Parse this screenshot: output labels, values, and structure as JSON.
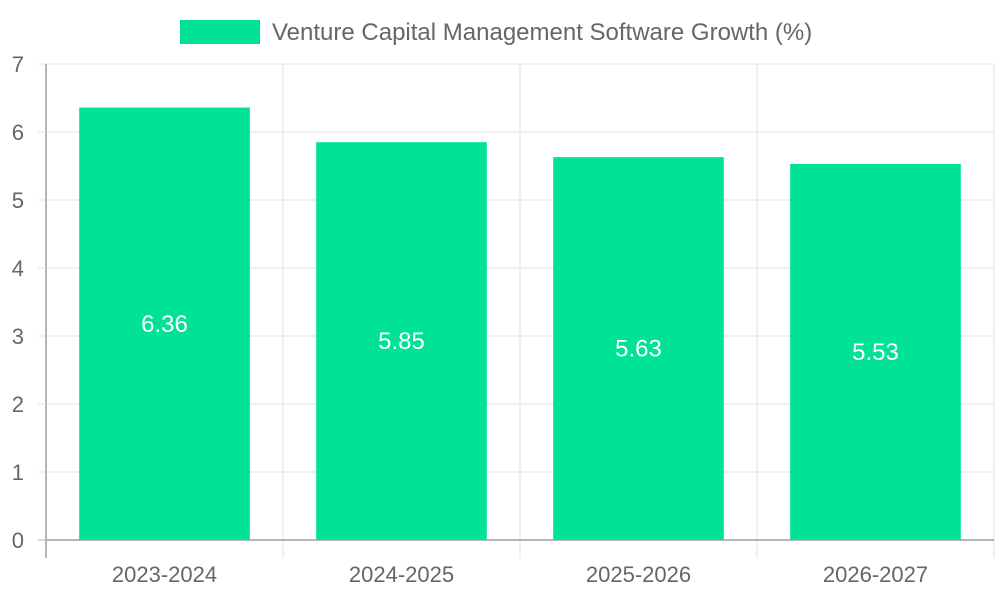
{
  "chart_data": {
    "type": "bar",
    "categories": [
      "2023-2024",
      "2024-2025",
      "2025-2026",
      "2026-2027"
    ],
    "series": [
      {
        "name": "Venture Capital Management Software Growth (%)",
        "values": [
          6.36,
          5.85,
          5.63,
          5.53
        ],
        "color": "#00e394"
      }
    ],
    "data_labels": [
      "6.36",
      "5.85",
      "5.63",
      "5.53"
    ],
    "ylim": [
      0,
      7
    ],
    "y_ticks": [
      "0",
      "1",
      "2",
      "3",
      "4",
      "5",
      "6",
      "7"
    ],
    "y_tick_values": [
      0,
      1,
      2,
      3,
      4,
      5,
      6,
      7
    ],
    "title": "",
    "xlabel": "",
    "ylabel": "",
    "legend_position": "top",
    "grid": true
  },
  "colors": {
    "grid": "#e0e0e0",
    "axis": "#9e9e9e",
    "text": "#666666"
  }
}
